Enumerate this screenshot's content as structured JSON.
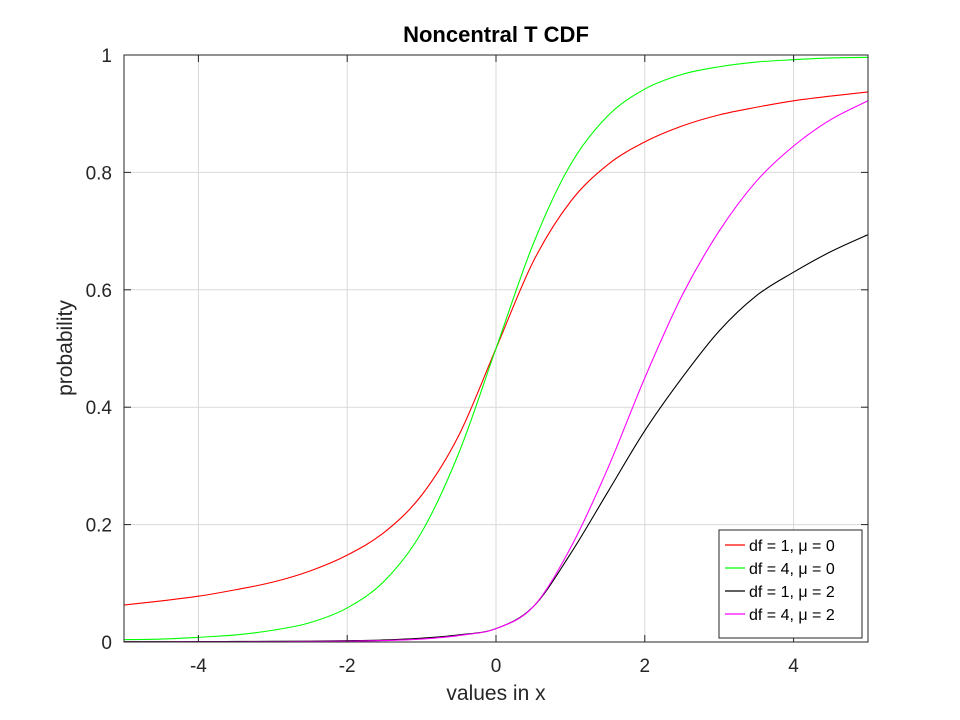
{
  "chart_data": {
    "type": "line",
    "title": "Noncentral T CDF",
    "xlabel": "values in x",
    "ylabel": "probability",
    "xlim": [
      -5,
      5
    ],
    "ylim": [
      0,
      1
    ],
    "xticks": [
      -4,
      -2,
      0,
      2,
      4
    ],
    "xtick_labels": [
      "-4",
      "-2",
      "0",
      "2",
      "4"
    ],
    "yticks": [
      0,
      0.2,
      0.4,
      0.6,
      0.8,
      1
    ],
    "ytick_labels": [
      "0",
      "0.2",
      "0.4",
      "0.6",
      "0.8",
      "1"
    ],
    "grid": true,
    "legend_position": "bottom-right",
    "x": [
      -5,
      -4.5,
      -4,
      -3.5,
      -3,
      -2.5,
      -2,
      -1.5,
      -1,
      -0.5,
      0,
      0.5,
      1,
      1.5,
      2,
      2.5,
      3,
      3.5,
      4,
      4.5,
      5
    ],
    "series": [
      {
        "name": "df = 1, μ = 0",
        "color": "#ff0000",
        "values": [
          0.063,
          0.07,
          0.078,
          0.089,
          0.102,
          0.121,
          0.148,
          0.187,
          0.25,
          0.352,
          0.5,
          0.648,
          0.75,
          0.813,
          0.852,
          0.879,
          0.898,
          0.911,
          0.922,
          0.93,
          0.937
        ]
      },
      {
        "name": "df = 4, μ = 0",
        "color": "#00ff00",
        "values": [
          0.004,
          0.005,
          0.008,
          0.012,
          0.02,
          0.033,
          0.058,
          0.104,
          0.187,
          0.322,
          0.5,
          0.678,
          0.813,
          0.896,
          0.942,
          0.967,
          0.98,
          0.988,
          0.992,
          0.995,
          0.996
        ]
      },
      {
        "name": "df = 1, μ = 2",
        "color": "#000000",
        "values": [
          0.0005,
          0.0006,
          0.0007,
          0.0009,
          0.0011,
          0.0015,
          0.0022,
          0.0035,
          0.0065,
          0.012,
          0.0228,
          0.06,
          0.15,
          0.255,
          0.36,
          0.45,
          0.53,
          0.59,
          0.63,
          0.665,
          0.694
        ]
      },
      {
        "name": "df = 4, μ = 2",
        "color": "#ff00ff",
        "values": [
          0.0002,
          0.0002,
          0.0003,
          0.0004,
          0.0006,
          0.0009,
          0.0014,
          0.0025,
          0.005,
          0.011,
          0.0228,
          0.06,
          0.16,
          0.295,
          0.45,
          0.59,
          0.7,
          0.785,
          0.845,
          0.89,
          0.922
        ]
      }
    ]
  }
}
